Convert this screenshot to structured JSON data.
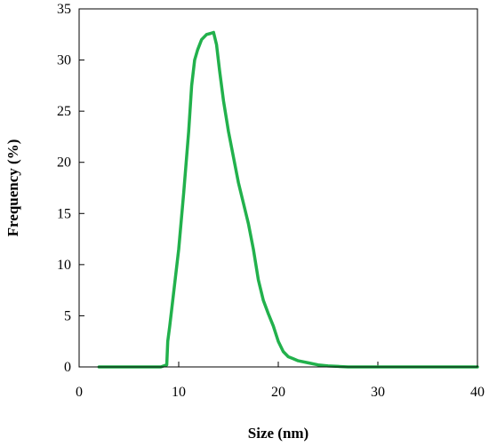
{
  "chart_data": {
    "type": "line",
    "title": "",
    "xlabel": "Size (nm)",
    "ylabel": "Frequency (%)",
    "xlim": [
      0,
      40
    ],
    "ylim": [
      0,
      35
    ],
    "x_ticks": [
      0,
      10,
      20,
      30,
      40
    ],
    "y_ticks": [
      0,
      5,
      10,
      15,
      20,
      25,
      30,
      35
    ],
    "grid": false,
    "legend": "none",
    "series_color": "#22b14c",
    "series": [
      {
        "x": [
          2.0,
          4.0,
          6.0,
          7.5,
          8.2,
          8.8,
          8.9,
          9.1,
          9.4,
          10.0,
          10.5,
          11.0,
          11.3,
          11.6,
          11.9,
          12.3,
          12.8,
          13.2,
          13.5,
          13.8,
          14.1,
          14.5,
          15.0,
          15.5,
          16.0,
          16.5,
          17.0,
          17.5,
          18.0,
          18.5,
          19.0,
          19.5,
          20.0,
          20.5,
          21.0,
          21.5,
          22.0,
          23.0,
          24.0,
          25.0,
          26.0,
          27.0,
          30.0,
          35.0,
          40.0
        ],
        "y": [
          0.0,
          0.0,
          0.0,
          0.0,
          0.0,
          0.2,
          2.5,
          4.0,
          6.5,
          11.5,
          17.0,
          23.0,
          27.5,
          30.0,
          31.0,
          32.0,
          32.5,
          32.6,
          32.7,
          31.5,
          29.0,
          26.0,
          23.0,
          20.5,
          18.0,
          16.0,
          14.0,
          11.5,
          8.5,
          6.5,
          5.2,
          4.0,
          2.5,
          1.5,
          1.0,
          0.8,
          0.6,
          0.4,
          0.2,
          0.1,
          0.05,
          0.0,
          0.0,
          0.0,
          0.0
        ]
      }
    ]
  }
}
